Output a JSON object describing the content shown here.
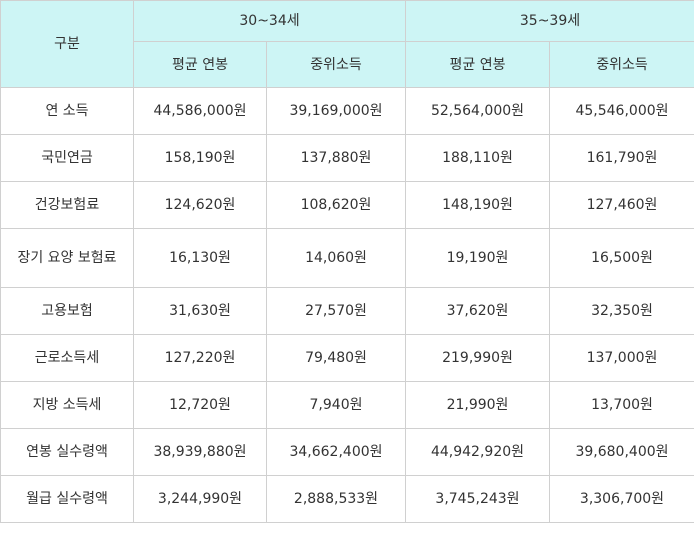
{
  "table": {
    "category_header": "구분",
    "age_groups": [
      "30~34세",
      "35~39세"
    ],
    "sub_headers": [
      "평균 연봉",
      "중위소득",
      "평균 연봉",
      "중위소득"
    ],
    "rows": [
      {
        "label": "연 소득",
        "values": [
          "44,586,000원",
          "39,169,000원",
          "52,564,000원",
          "45,546,000원"
        ]
      },
      {
        "label": "국민연금",
        "values": [
          "158,190원",
          "137,880원",
          "188,110원",
          "161,790원"
        ]
      },
      {
        "label": "건강보험료",
        "values": [
          "124,620원",
          "108,620원",
          "148,190원",
          "127,460원"
        ]
      },
      {
        "label": "장기 요양 보험료",
        "values": [
          "16,130원",
          "14,060원",
          "19,190원",
          "16,500원"
        ]
      },
      {
        "label": "고용보험",
        "values": [
          "31,630원",
          "27,570원",
          "37,620원",
          "32,350원"
        ]
      },
      {
        "label": "근로소득세",
        "values": [
          "127,220원",
          "79,480원",
          "219,990원",
          "137,000원"
        ]
      },
      {
        "label": "지방 소득세",
        "values": [
          "12,720원",
          "7,940원",
          "21,990원",
          "13,700원"
        ]
      },
      {
        "label": "연봉 실수령액",
        "values": [
          "38,939,880원",
          "34,662,400원",
          "44,942,920원",
          "39,680,400원"
        ]
      },
      {
        "label": "월급 실수령액",
        "values": [
          "3,244,990원",
          "2,888,533원",
          "3,745,243원",
          "3,306,700원"
        ]
      }
    ]
  }
}
